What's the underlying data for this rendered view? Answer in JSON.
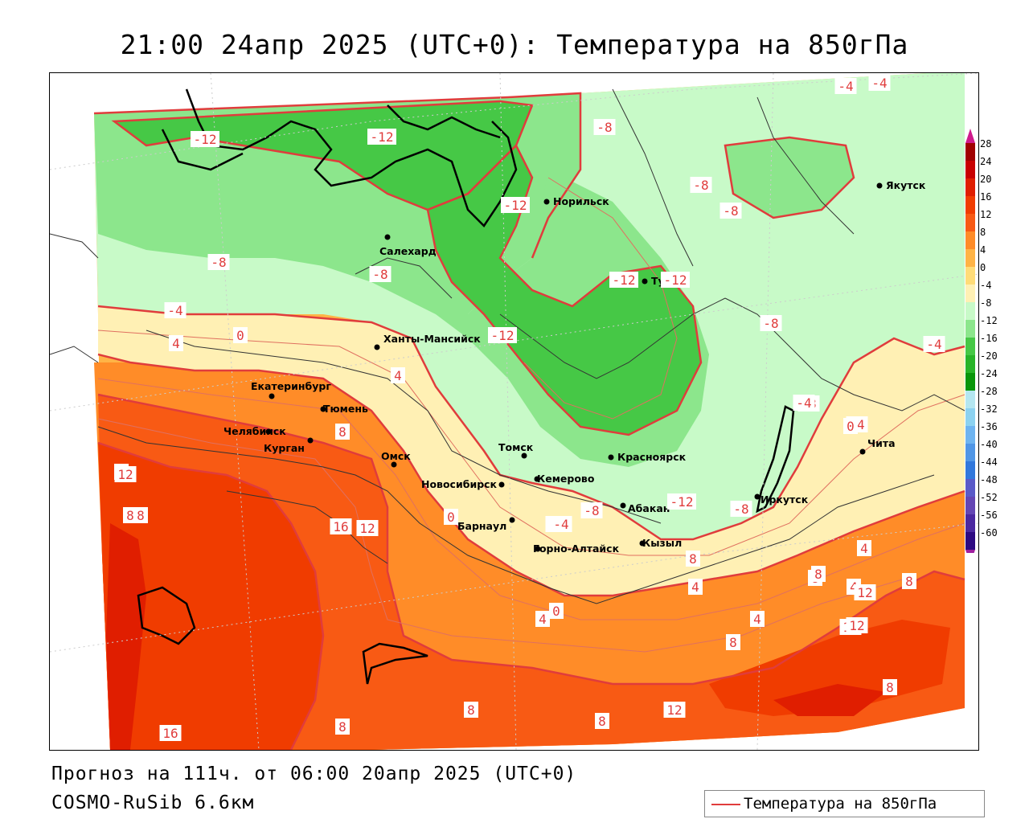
{
  "title": "21:00 24апр 2025 (UTC+0): Температура на 850гПа",
  "footer": {
    "forecast": "Прогноз на 111ч. от 06:00 20апр 2025 (UTC+0)",
    "model": "COSMO-RuSib 6.6км"
  },
  "legend": {
    "label": "Температура на 850гПа",
    "color": "#e03c3c"
  },
  "colorbar": {
    "levels": [
      "28",
      "24",
      "20",
      "16",
      "12",
      "8",
      "4",
      "0",
      "-4",
      "-8",
      "-12",
      "-16",
      "-20",
      "-24",
      "-28",
      "-32",
      "-36",
      "-40",
      "-44",
      "-48",
      "-52",
      "-56",
      "-60"
    ],
    "colors": [
      "#a00000",
      "#c80000",
      "#e01e00",
      "#f03c00",
      "#f85a14",
      "#ff8c28",
      "#ffb446",
      "#ffdc78",
      "#fff0b4",
      "#c8fac8",
      "#8ce68c",
      "#46c846",
      "#28b428",
      "#0a960a",
      "#b4e6f0",
      "#8cd2f0",
      "#6eb4f0",
      "#5096e6",
      "#3278dc",
      "#5a5ac8",
      "#6446b4",
      "#4b28a0",
      "#2d0a82"
    ]
  },
  "cities": [
    {
      "name": "Норильск"
    },
    {
      "name": "Салехард"
    },
    {
      "name": "Тура"
    },
    {
      "name": "Якутск"
    },
    {
      "name": "Ханты-Мансийск"
    },
    {
      "name": "Екатеринбург"
    },
    {
      "name": "Тюмень"
    },
    {
      "name": "Челябинск"
    },
    {
      "name": "Курган"
    },
    {
      "name": "Омск"
    },
    {
      "name": "Новосибирск"
    },
    {
      "name": "Томск"
    },
    {
      "name": "Кемерово"
    },
    {
      "name": "Красноярск"
    },
    {
      "name": "Абакан"
    },
    {
      "name": "Барнаул"
    },
    {
      "name": "Горно-Алтайск"
    },
    {
      "name": "Кызыл"
    },
    {
      "name": "Иркутск"
    },
    {
      "name": "Чита"
    }
  ],
  "contour_labels": [
    "-12",
    "-12",
    "-8",
    "-4",
    "-4",
    "-8",
    "-8",
    "-12",
    "-12",
    "-8",
    "-8",
    "-8",
    "-4",
    "0",
    "-4",
    "4",
    "4",
    "-12",
    "-8",
    "-4",
    "-4",
    "0",
    "8",
    "8",
    "8",
    "12",
    "16",
    "12",
    "8",
    "16",
    "-12",
    "0",
    "-8",
    "-12",
    "-4",
    "-8",
    "-4",
    "4",
    "0",
    "4",
    "8",
    "8",
    "12",
    "4",
    "8",
    "4",
    "4",
    "8",
    "8",
    "12",
    "12",
    "8",
    "8",
    "12",
    "8",
    "8"
  ]
}
